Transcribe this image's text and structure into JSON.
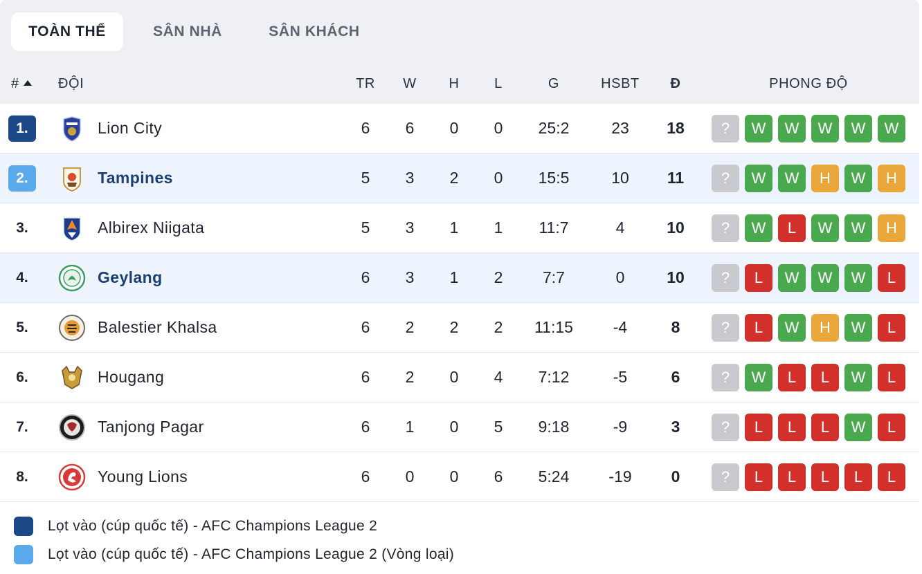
{
  "tabs": [
    {
      "label": "TOÀN THỂ",
      "active": true
    },
    {
      "label": "SÂN NHÀ",
      "active": false
    },
    {
      "label": "SÂN KHÁCH",
      "active": false
    }
  ],
  "columns": {
    "rank": "#",
    "team": "ĐỘI",
    "played": "TR",
    "won": "W",
    "drawn": "H",
    "lost": "L",
    "goals": "G",
    "goal_diff": "HSBT",
    "points": "Đ",
    "form": "PHONG ĐỘ"
  },
  "form_colors": {
    "W": "#4aa84f",
    "L": "#d2302b",
    "H": "#e9a63a",
    "?": "#c8cacd"
  },
  "zone_colors": {
    "q1": "#1c4887",
    "q2": "#5aa9ea"
  },
  "rows": [
    {
      "rank": "1.",
      "zone": "q1",
      "team": "Lion City",
      "logo": "lion-city-crest",
      "highlight": false,
      "bold": false,
      "played": "6",
      "won": "6",
      "drawn": "0",
      "lost": "0",
      "goals": "25:2",
      "goal_diff": "23",
      "points": "18",
      "form": [
        "?",
        "W",
        "W",
        "W",
        "W",
        "W"
      ]
    },
    {
      "rank": "2.",
      "zone": "q2",
      "team": "Tampines",
      "logo": "tampines-crest",
      "highlight": true,
      "bold": true,
      "played": "5",
      "won": "3",
      "drawn": "2",
      "lost": "0",
      "goals": "15:5",
      "goal_diff": "10",
      "points": "11",
      "form": [
        "?",
        "W",
        "W",
        "H",
        "W",
        "H"
      ]
    },
    {
      "rank": "3.",
      "zone": "",
      "team": "Albirex Niigata",
      "logo": "albirex-crest",
      "highlight": false,
      "bold": false,
      "played": "5",
      "won": "3",
      "drawn": "1",
      "lost": "1",
      "goals": "11:7",
      "goal_diff": "4",
      "points": "10",
      "form": [
        "?",
        "W",
        "L",
        "W",
        "W",
        "H"
      ]
    },
    {
      "rank": "4.",
      "zone": "",
      "team": "Geylang",
      "logo": "geylang-crest",
      "highlight": true,
      "bold": true,
      "played": "6",
      "won": "3",
      "drawn": "1",
      "lost": "2",
      "goals": "7:7",
      "goal_diff": "0",
      "points": "10",
      "form": [
        "?",
        "L",
        "W",
        "W",
        "W",
        "L"
      ]
    },
    {
      "rank": "5.",
      "zone": "",
      "team": "Balestier Khalsa",
      "logo": "balestier-crest",
      "highlight": false,
      "bold": false,
      "played": "6",
      "won": "2",
      "drawn": "2",
      "lost": "2",
      "goals": "11:15",
      "goal_diff": "-4",
      "points": "8",
      "form": [
        "?",
        "L",
        "W",
        "H",
        "W",
        "L"
      ]
    },
    {
      "rank": "6.",
      "zone": "",
      "team": "Hougang",
      "logo": "hougang-crest",
      "highlight": false,
      "bold": false,
      "played": "6",
      "won": "2",
      "drawn": "0",
      "lost": "4",
      "goals": "7:12",
      "goal_diff": "-5",
      "points": "6",
      "form": [
        "?",
        "W",
        "L",
        "L",
        "W",
        "L"
      ]
    },
    {
      "rank": "7.",
      "zone": "",
      "team": "Tanjong Pagar",
      "logo": "tanjong-pagar-crest",
      "highlight": false,
      "bold": false,
      "played": "6",
      "won": "1",
      "drawn": "0",
      "lost": "5",
      "goals": "9:18",
      "goal_diff": "-9",
      "points": "3",
      "form": [
        "?",
        "L",
        "L",
        "L",
        "W",
        "L"
      ]
    },
    {
      "rank": "8.",
      "zone": "",
      "team": "Young Lions",
      "logo": "young-lions-crest",
      "highlight": false,
      "bold": false,
      "played": "6",
      "won": "0",
      "drawn": "0",
      "lost": "6",
      "goals": "5:24",
      "goal_diff": "-19",
      "points": "0",
      "form": [
        "?",
        "L",
        "L",
        "L",
        "L",
        "L"
      ]
    }
  ],
  "legend": [
    {
      "zone": "q1",
      "text": "Lọt vào (cúp quốc tế) - AFC Champions League 2"
    },
    {
      "zone": "q2",
      "text": "Lọt vào (cúp quốc tế) - AFC Champions League 2 (Vòng loại)"
    }
  ]
}
